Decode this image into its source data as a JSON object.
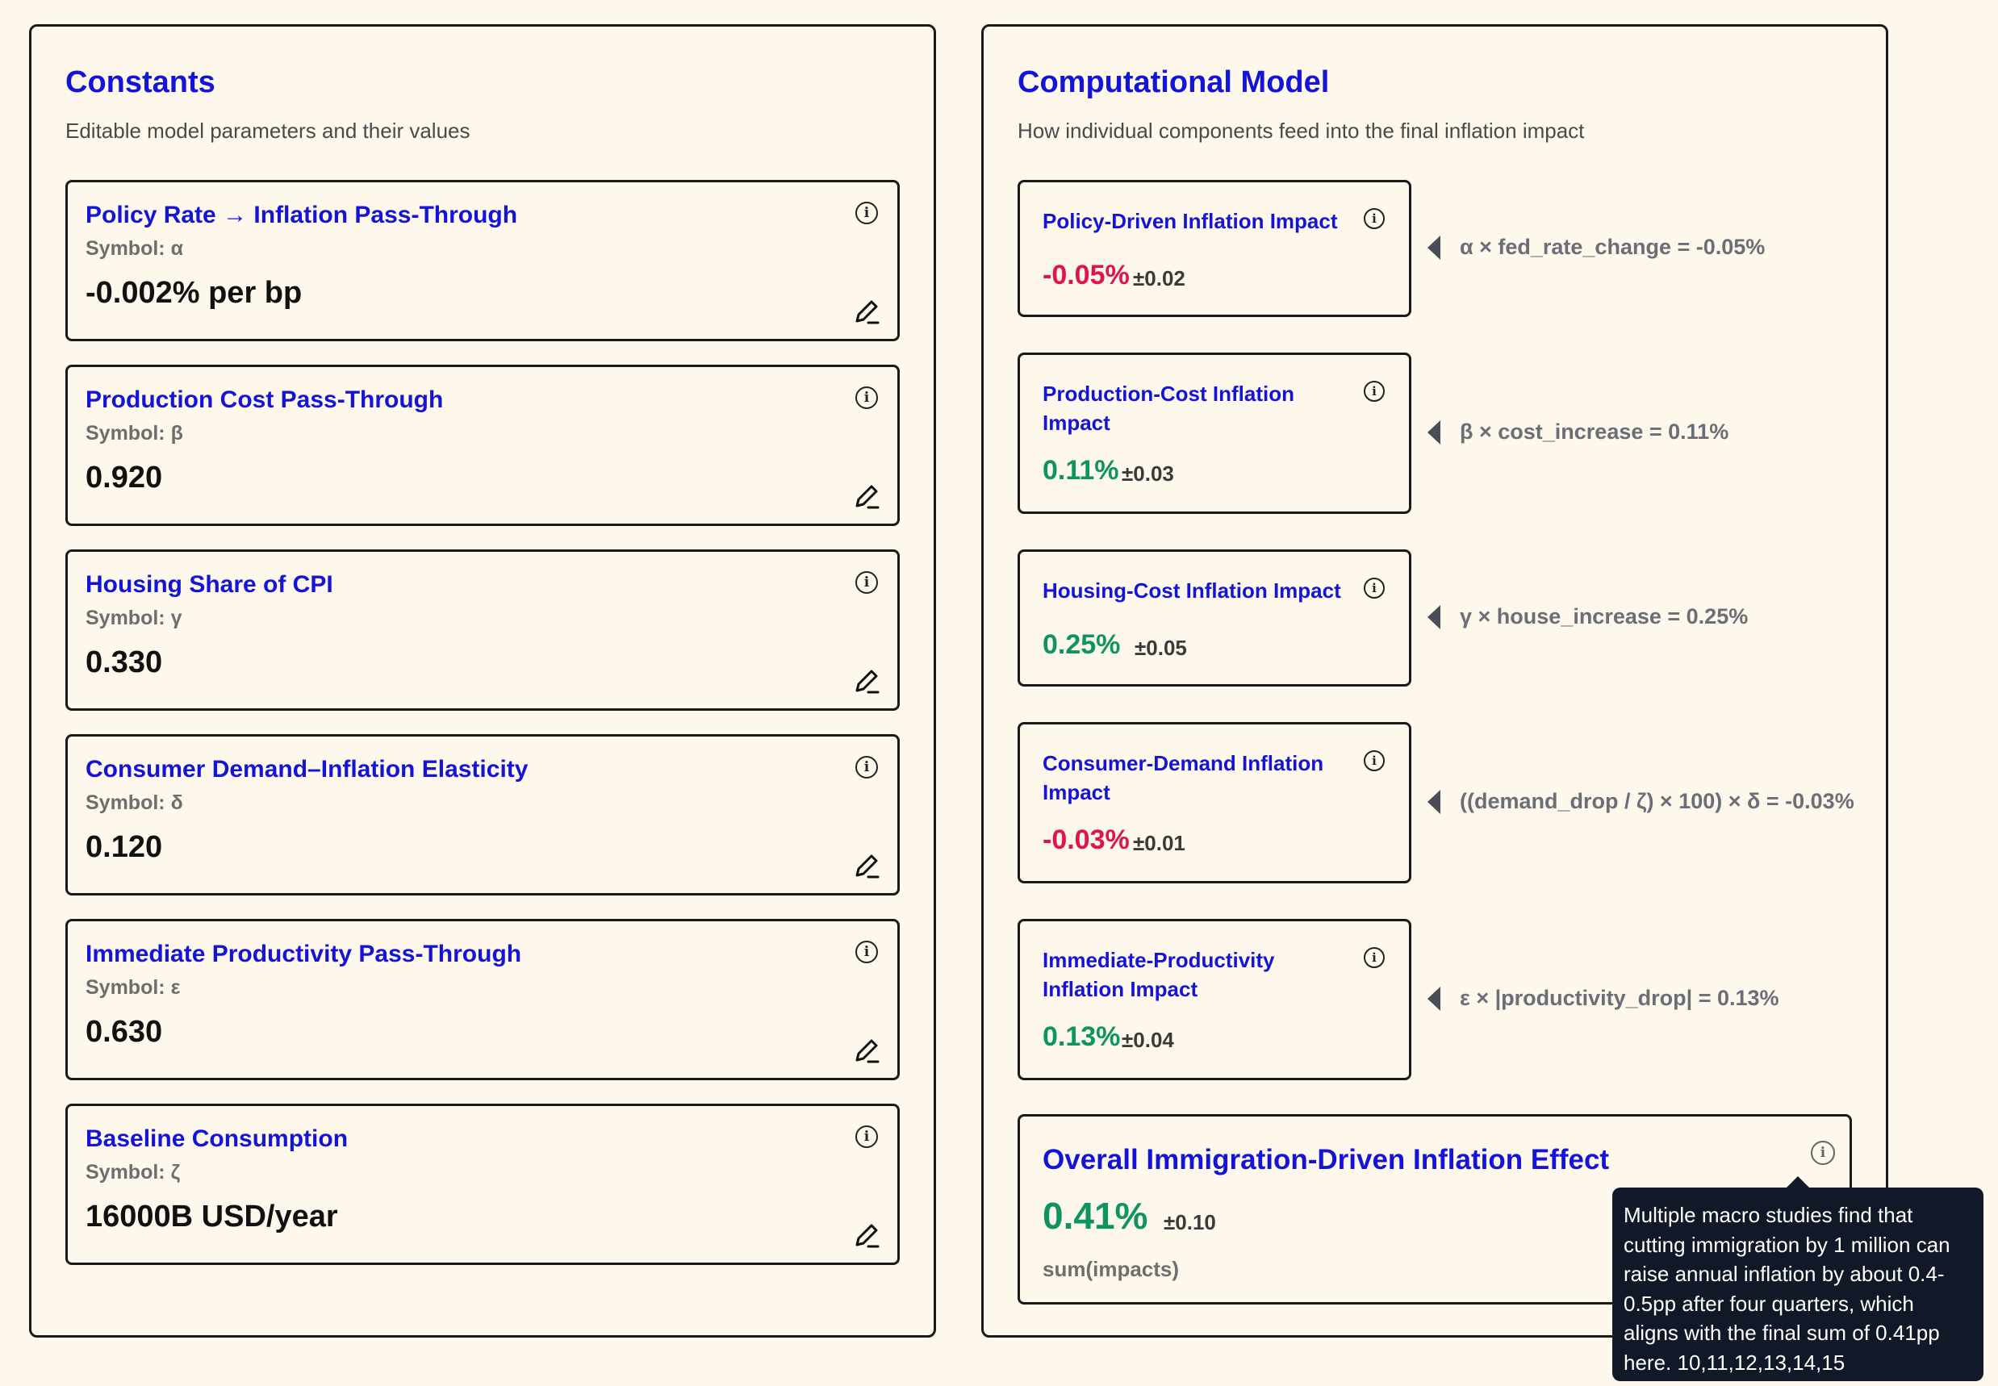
{
  "constants": {
    "title": "Constants",
    "subtitle": "Editable model parameters and their values",
    "items": [
      {
        "name": "Policy Rate → Inflation Pass-Through",
        "symbol": "Symbol: α",
        "value": "-0.002% per bp"
      },
      {
        "name": "Production Cost Pass-Through",
        "symbol": "Symbol: β",
        "value": "0.920"
      },
      {
        "name": "Housing Share of CPI",
        "symbol": "Symbol: γ",
        "value": "0.330"
      },
      {
        "name": "Consumer Demand–Inflation Elasticity",
        "symbol": "Symbol: δ",
        "value": "0.120"
      },
      {
        "name": "Immediate Productivity Pass-Through",
        "symbol": "Symbol: ε",
        "value": "0.630"
      },
      {
        "name": "Baseline Consumption",
        "symbol": "Symbol: ζ",
        "value": "16000B USD/year"
      }
    ]
  },
  "model": {
    "title": "Computational Model",
    "subtitle": "How individual components feed into the final inflation impact",
    "impacts": [
      {
        "name": "Policy-Driven Inflation Impact",
        "value": "-0.05%",
        "error": "±0.02",
        "formula": "α × fed_rate_change = -0.05%"
      },
      {
        "name": "Production-Cost Inflation Impact",
        "value": "0.11%",
        "error": "±0.03",
        "formula": "β × cost_increase = 0.11%"
      },
      {
        "name": "Housing-Cost Inflation Impact",
        "value": "0.25%",
        "error": "±0.05",
        "formula": "γ × house_increase = 0.25%"
      },
      {
        "name": "Consumer-Demand Inflation Impact",
        "value": "-0.03%",
        "error": "±0.01",
        "formula": "((demand_drop / ζ) × 100) × δ = -0.03%"
      },
      {
        "name": "Immediate-Productivity Inflation Impact",
        "value": "0.13%",
        "error": "±0.04",
        "formula": "ε × |productivity_drop| = 0.13%"
      }
    ],
    "overall": {
      "name": "Overall Immigration-Driven Inflation Effect",
      "value": "0.41%",
      "error": "±0.10",
      "formula": "sum(impacts)"
    }
  },
  "tooltip": {
    "text": "Multiple macro studies find that cutting immigration by 1 million can raise annual inflation by about 0.4-0.5pp after four quarters, which aligns with the final sum of 0.41pp here. 10,11,12,13,14,15"
  },
  "icons": {
    "info": "info-icon",
    "edit": "pencil-icon"
  },
  "colors": {
    "title": "#1414d9",
    "positive": "#0e9460",
    "negative": "#e0134f",
    "tooltip_bg": "#111827"
  }
}
